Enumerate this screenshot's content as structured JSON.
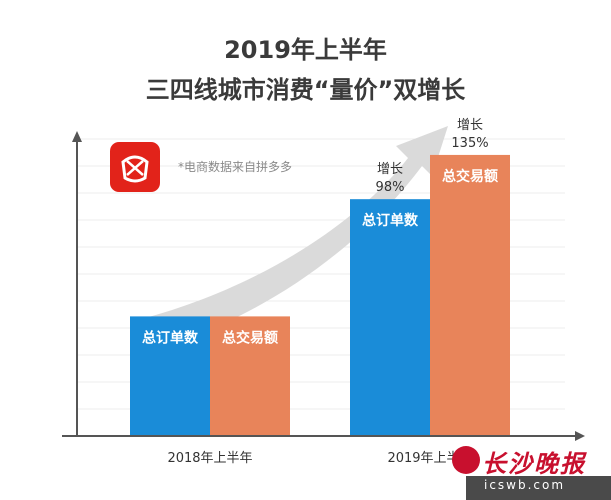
{
  "header": {
    "title": "2019年上半年",
    "subtitle": "三四线城市消费“量价”双增长"
  },
  "note": "*电商数据来自拼多多",
  "logo": {
    "name": "pinduoduo-logo",
    "color": "#e2231a"
  },
  "watermark": {
    "name": "长沙晚报",
    "url": "icswb.com"
  },
  "colors": {
    "orders": "#1a8cd8",
    "gmv": "#e8845a",
    "arrow": "#d6d6d6",
    "axis": "#555555",
    "grid": "#eeeeee"
  },
  "chart_data": {
    "type": "bar",
    "categories": [
      "2018年上半年",
      "2019年上半年"
    ],
    "series": [
      {
        "name": "总订单数",
        "values": [
          1.0,
          1.98
        ]
      },
      {
        "name": "总交易额",
        "values": [
          1.0,
          2.35
        ]
      }
    ],
    "annotations": [
      {
        "category": "2019年上半年",
        "series": "总订单数",
        "label": "增长",
        "value": "98%"
      },
      {
        "category": "2019年上半年",
        "series": "总交易额",
        "label": "增长",
        "value": "135%"
      }
    ],
    "ylim": [
      0,
      2.55
    ],
    "grid": true,
    "trend_arrow": true
  }
}
